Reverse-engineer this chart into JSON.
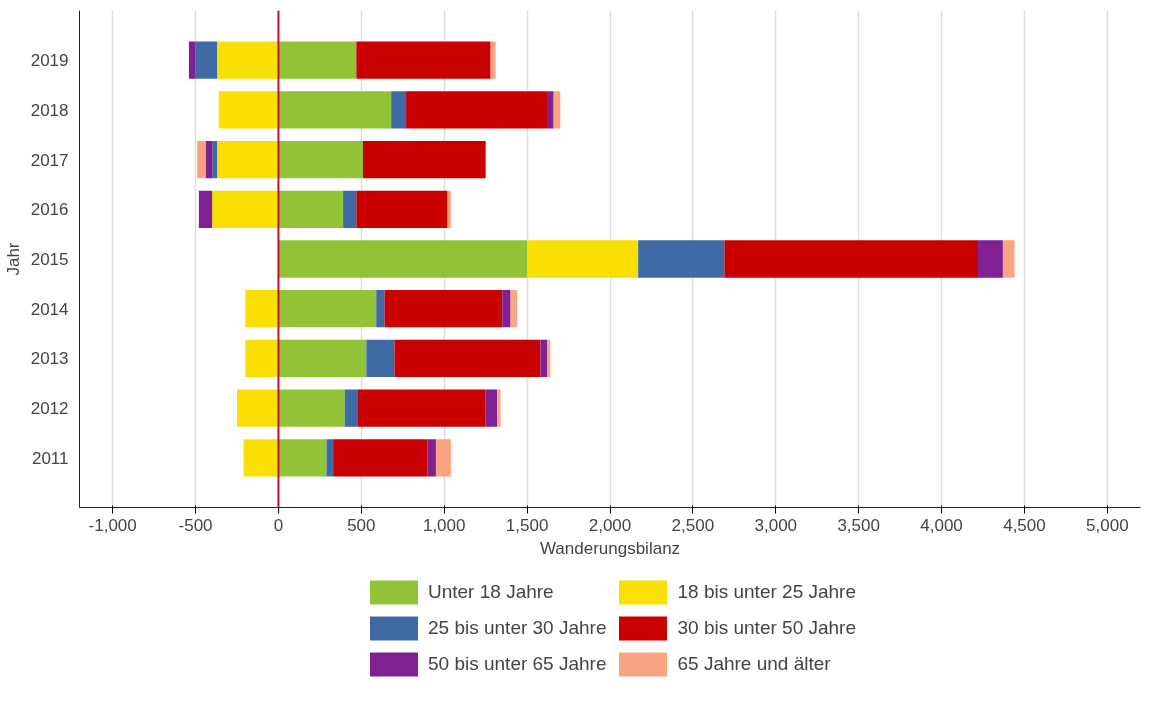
{
  "chart_data": {
    "type": "bar",
    "orientation": "horizontal",
    "stacked": true,
    "xlabel": "Wanderungsbilanz",
    "ylabel": "Jahr",
    "categories": [
      "2019",
      "2018",
      "2017",
      "2016",
      "2015",
      "2014",
      "2013",
      "2012",
      "2011"
    ],
    "series": [
      {
        "name": "Unter 18 Jahre",
        "color": "#92c337",
        "values": [
          470,
          680,
          510,
          390,
          1500,
          590,
          530,
          400,
          290
        ]
      },
      {
        "name": "18 bis unter 25 Jahre",
        "color": "#fadf05",
        "values": [
          -370,
          -360,
          -370,
          -400,
          670,
          -200,
          -200,
          -250,
          -210
        ]
      },
      {
        "name": "25 bis unter 30 Jahre",
        "color": "#406aa6",
        "values": [
          -130,
          90,
          -30,
          80,
          520,
          50,
          170,
          80,
          40
        ]
      },
      {
        "name": "30 bis unter 50 Jahre",
        "color": "#c80000",
        "values": [
          810,
          850,
          740,
          550,
          1530,
          710,
          880,
          770,
          570
        ]
      },
      {
        "name": "50 bis unter 65 Jahre",
        "color": "#7f2093",
        "values": [
          -40,
          40,
          -40,
          -80,
          150,
          50,
          40,
          70,
          50
        ]
      },
      {
        "name": "65 Jahre und älter",
        "color": "#fba482",
        "values": [
          30,
          40,
          -50,
          20,
          70,
          40,
          20,
          20,
          90
        ]
      }
    ],
    "xlim": [
      -1200,
      5200
    ],
    "xticks": [
      {
        "value": -1000,
        "label": "-1,000"
      },
      -500,
      0,
      500,
      {
        "value": 1000,
        "label": "1,000"
      },
      {
        "value": 1500,
        "label": "1,500"
      },
      {
        "value": 2000,
        "label": "2,000"
      },
      {
        "value": 2500,
        "label": "2,500"
      },
      {
        "value": 3000,
        "label": "3,000"
      },
      {
        "value": 3500,
        "label": "3,500"
      },
      {
        "value": 4000,
        "label": "4,000"
      },
      {
        "value": 4500,
        "label": "4,500"
      },
      {
        "value": 5000,
        "label": "5,000"
      }
    ],
    "ref_lines": [
      {
        "axis": "x",
        "value": 0,
        "color": "#c8102e"
      }
    ],
    "grid": "x",
    "legend": "bottom"
  }
}
